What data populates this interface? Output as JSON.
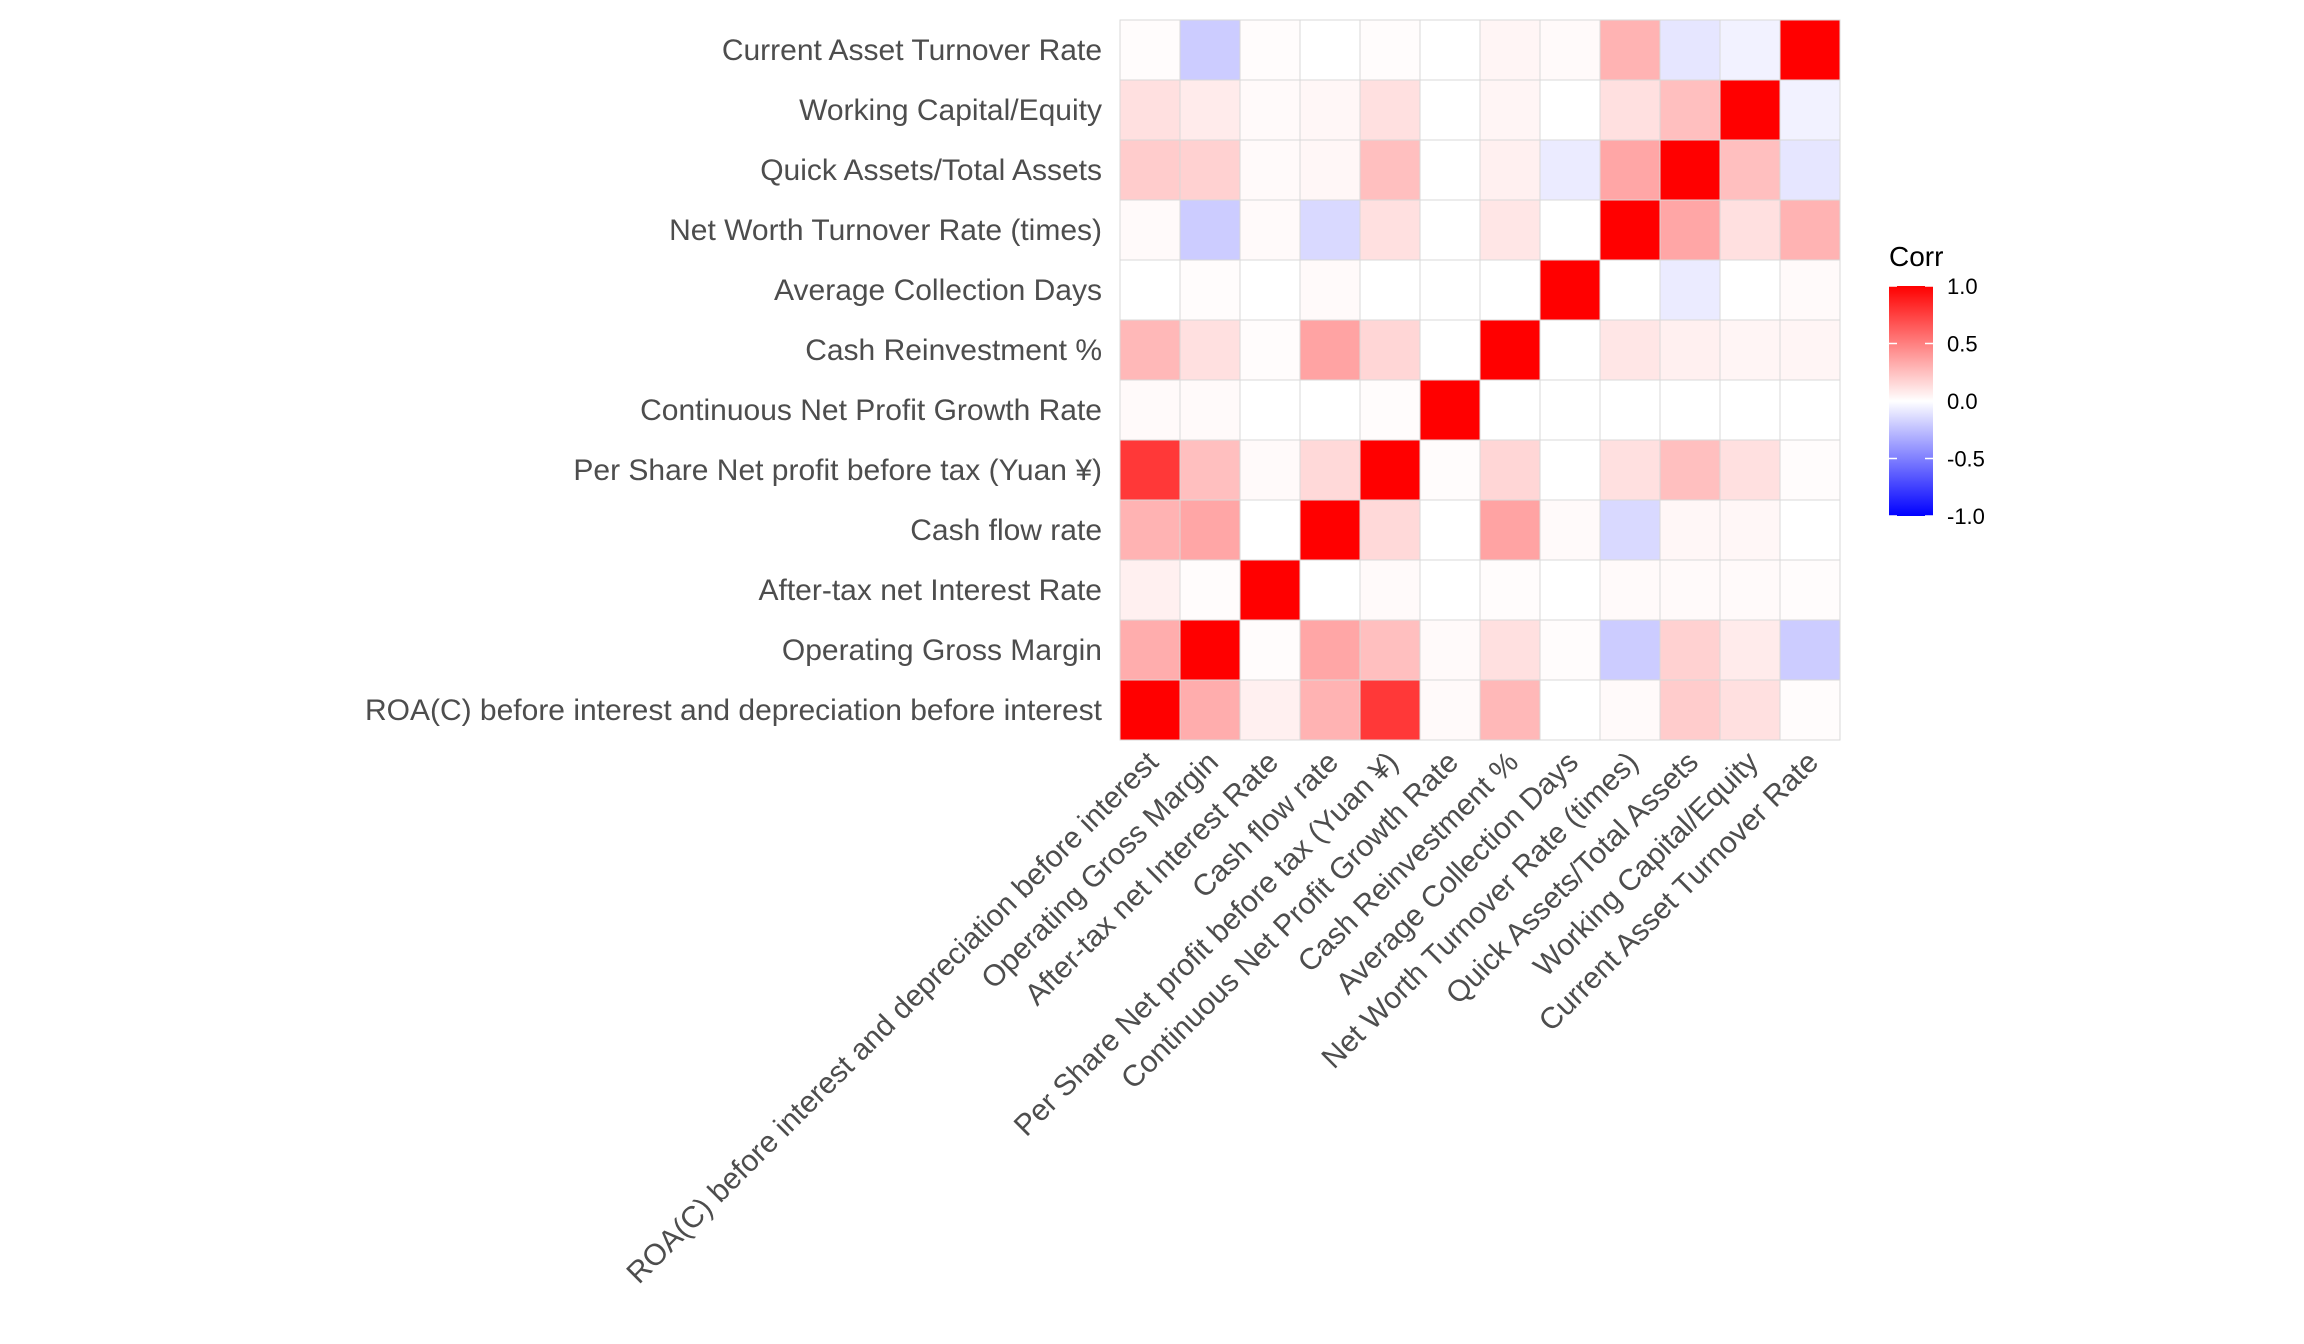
{
  "chart_data": {
    "type": "heatmap",
    "title": "",
    "xlabel": "",
    "ylabel": "",
    "variables": [
      "ROA(C) before interest and depreciation before interest",
      "Operating Gross Margin",
      "After-tax net Interest Rate",
      "Cash flow rate",
      "Per Share Net profit before tax (Yuan ¥)",
      "Continuous Net Profit Growth Rate",
      "Cash Reinvestment %",
      "Average Collection Days",
      "Net Worth Turnover Rate (times)",
      "Quick Assets/Total Assets",
      "Working Capital/Equity",
      "Current Asset Turnover Rate"
    ],
    "matrix": [
      [
        1.0,
        0.32,
        0.06,
        0.3,
        0.78,
        0.02,
        0.28,
        0.0,
        0.02,
        0.2,
        0.12,
        0.01
      ],
      [
        0.32,
        1.0,
        0.01,
        0.35,
        0.25,
        0.02,
        0.12,
        0.01,
        -0.2,
        0.18,
        0.08,
        -0.2
      ],
      [
        0.06,
        0.01,
        1.0,
        0.0,
        0.02,
        0.0,
        0.01,
        0.0,
        0.02,
        0.02,
        0.02,
        0.01
      ],
      [
        0.3,
        0.35,
        0.0,
        1.0,
        0.15,
        0.0,
        0.36,
        0.02,
        -0.15,
        0.03,
        0.03,
        0.0
      ],
      [
        0.78,
        0.25,
        0.02,
        0.15,
        1.0,
        0.01,
        0.16,
        0.0,
        0.12,
        0.25,
        0.12,
        0.01
      ],
      [
        0.02,
        0.02,
        0.0,
        0.0,
        0.01,
        1.0,
        0.0,
        0.0,
        0.0,
        0.0,
        0.0,
        0.0
      ],
      [
        0.28,
        0.12,
        0.01,
        0.36,
        0.16,
        0.0,
        1.0,
        0.0,
        0.1,
        0.06,
        0.04,
        0.04
      ],
      [
        0.0,
        0.01,
        0.0,
        0.02,
        0.0,
        0.0,
        0.0,
        1.0,
        0.0,
        -0.08,
        0.0,
        0.02
      ],
      [
        0.02,
        -0.2,
        0.02,
        -0.15,
        0.12,
        0.0,
        0.1,
        0.0,
        1.0,
        0.35,
        0.12,
        0.3
      ],
      [
        0.2,
        0.18,
        0.02,
        0.03,
        0.25,
        0.0,
        0.06,
        -0.08,
        0.35,
        1.0,
        0.25,
        -0.1
      ],
      [
        0.12,
        0.08,
        0.02,
        0.03,
        0.12,
        0.0,
        0.04,
        0.0,
        0.12,
        0.25,
        1.0,
        -0.05
      ],
      [
        0.01,
        -0.2,
        0.01,
        0.0,
        0.01,
        0.0,
        0.04,
        0.02,
        0.3,
        -0.1,
        -0.05,
        1.0
      ]
    ],
    "color_scale": {
      "low": "#0000ff",
      "mid": "#ffffff",
      "high": "#ff0000",
      "limits": [
        -1,
        1
      ]
    },
    "legend": {
      "title": "Corr",
      "ticks": [
        "1.0",
        "0.5",
        "0.0",
        "-0.5",
        "-1.0"
      ],
      "tick_values": [
        1.0,
        0.5,
        0.0,
        -0.5,
        -1.0
      ],
      "placement": "right"
    },
    "grid": true,
    "tile_border_color": "#d9d9d9"
  }
}
